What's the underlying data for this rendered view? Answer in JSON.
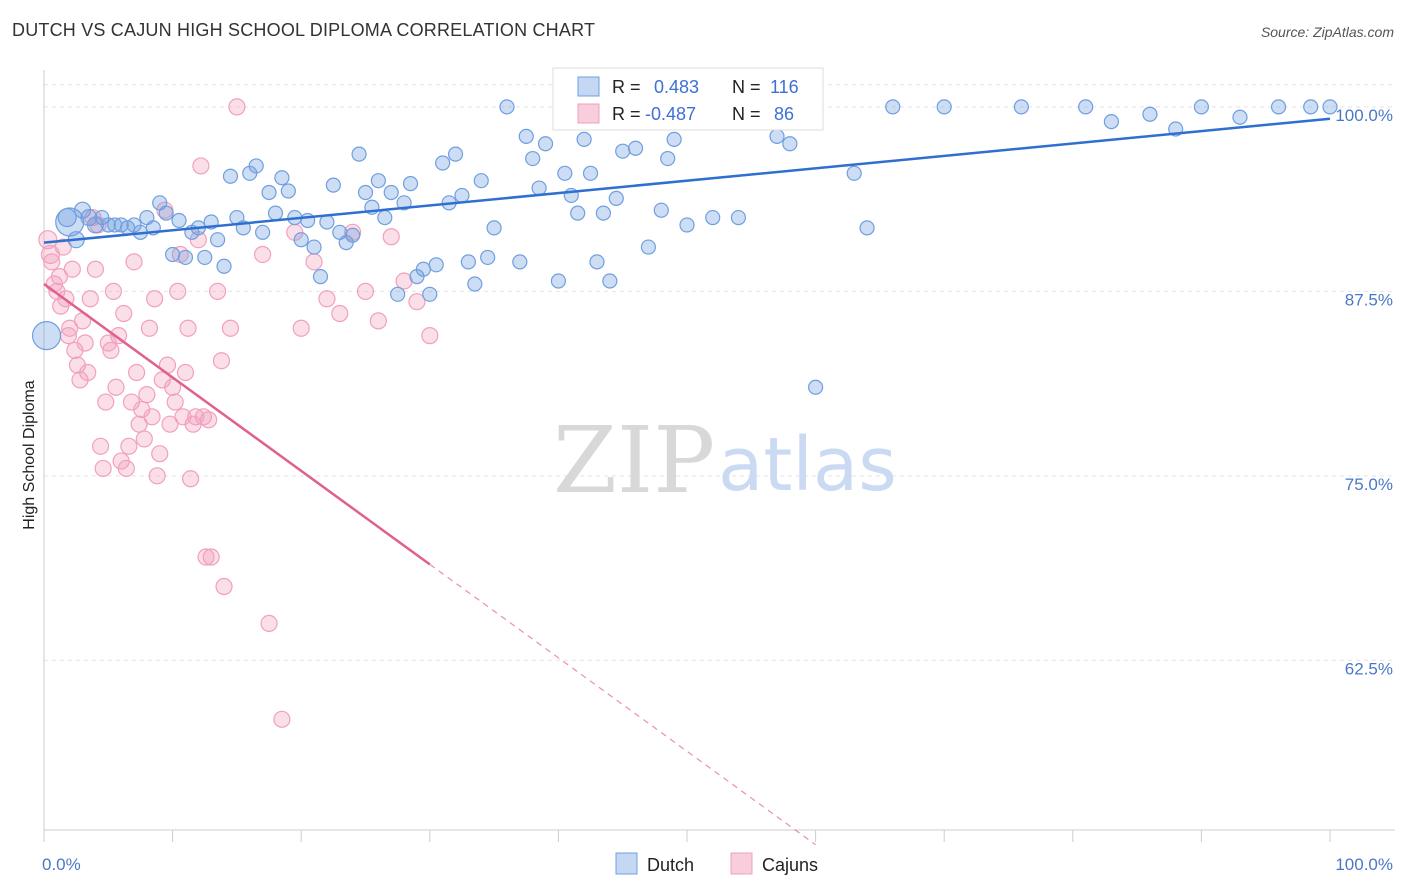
{
  "title": "DUTCH VS CAJUN HIGH SCHOOL DIPLOMA CORRELATION CHART",
  "source": "Source: ZipAtlas.com",
  "watermark": {
    "zip": "ZIP",
    "atlas": "atlas"
  },
  "legend": {
    "rows": [
      {
        "r_label": "R =",
        "r_value": "0.483",
        "n_label": "N =",
        "n_value": "116"
      },
      {
        "r_label": "R =",
        "r_value": "-0.487",
        "n_label": "N =",
        "n_value": "86"
      }
    ]
  },
  "bottom_legend": [
    "Dutch",
    "Cajuns"
  ],
  "colors": {
    "dutch": "#6f9fe0",
    "cajuns": "#f2a0bd",
    "dutch_line": "#2f6fd0",
    "cajun_line": "#e0608f"
  },
  "chart_data": {
    "type": "scatter",
    "title": "DUTCH VS CAJUN HIGH SCHOOL DIPLOMA CORRELATION CHART",
    "xlabel": "",
    "ylabel": "High School Diploma",
    "xlim": [
      0,
      100
    ],
    "ylim": [
      51,
      102.5
    ],
    "x_tick_labels": [
      "0.0%",
      "100.0%"
    ],
    "y_ticks": [
      62.5,
      75.0,
      87.5,
      100.0
    ],
    "y_tick_labels": [
      "62.5%",
      "75.0%",
      "87.5%",
      "100.0%"
    ],
    "grid": true,
    "legend_placement": "top-center",
    "series": [
      {
        "name": "Dutch",
        "r": 0.483,
        "n": 116,
        "trend": {
          "x": [
            0,
            100
          ],
          "y": [
            90.8,
            99.2
          ]
        },
        "points": [
          [
            0.2,
            84.5,
            14
          ],
          [
            1.8,
            92.5,
            9
          ],
          [
            2.0,
            92.2,
            14
          ],
          [
            2.5,
            91.0,
            8
          ],
          [
            3.0,
            93.0,
            8
          ],
          [
            3.5,
            92.5,
            8
          ],
          [
            4.0,
            92.0,
            8
          ],
          [
            4.5,
            92.5,
            7
          ],
          [
            5.0,
            92.0,
            7
          ],
          [
            5.5,
            92.0,
            7
          ],
          [
            6.0,
            92.0,
            7
          ],
          [
            6.5,
            91.8,
            7
          ],
          [
            7.0,
            92.0,
            7
          ],
          [
            7.5,
            91.5,
            7
          ],
          [
            8.0,
            92.5,
            7
          ],
          [
            8.5,
            91.8,
            7
          ],
          [
            9.0,
            93.5,
            7
          ],
          [
            9.5,
            92.8,
            7
          ],
          [
            10.0,
            90.0,
            7
          ],
          [
            10.5,
            92.3,
            7
          ],
          [
            11.0,
            89.8,
            7
          ],
          [
            11.5,
            91.5,
            7
          ],
          [
            12.0,
            91.8,
            7
          ],
          [
            12.5,
            89.8,
            7
          ],
          [
            13.0,
            92.2,
            7
          ],
          [
            13.5,
            91.0,
            7
          ],
          [
            14.0,
            89.2,
            7
          ],
          [
            14.5,
            95.3,
            7
          ],
          [
            15.0,
            92.5,
            7
          ],
          [
            15.5,
            91.8,
            7
          ],
          [
            16.0,
            95.5,
            7
          ],
          [
            16.5,
            96.0,
            7
          ],
          [
            17.0,
            91.5,
            7
          ],
          [
            17.5,
            94.2,
            7
          ],
          [
            18.0,
            92.8,
            7
          ],
          [
            18.5,
            95.2,
            7
          ],
          [
            19.0,
            94.3,
            7
          ],
          [
            19.5,
            92.5,
            7
          ],
          [
            20.0,
            91.0,
            7
          ],
          [
            20.5,
            92.3,
            7
          ],
          [
            21.0,
            90.5,
            7
          ],
          [
            21.5,
            88.5,
            7
          ],
          [
            22.0,
            92.2,
            7
          ],
          [
            22.5,
            94.7,
            7
          ],
          [
            23.0,
            91.5,
            7
          ],
          [
            23.5,
            90.8,
            7
          ],
          [
            24.0,
            91.3,
            7
          ],
          [
            24.5,
            96.8,
            7
          ],
          [
            25.0,
            94.2,
            7
          ],
          [
            25.5,
            93.2,
            7
          ],
          [
            26.0,
            95.0,
            7
          ],
          [
            26.5,
            92.5,
            7
          ],
          [
            27.0,
            94.2,
            7
          ],
          [
            27.5,
            87.3,
            7
          ],
          [
            28.0,
            93.5,
            7
          ],
          [
            28.5,
            94.8,
            7
          ],
          [
            29.0,
            88.5,
            7
          ],
          [
            29.5,
            89.0,
            7
          ],
          [
            30.0,
            87.3,
            7
          ],
          [
            30.5,
            89.3,
            7
          ],
          [
            31.0,
            96.2,
            7
          ],
          [
            31.5,
            93.5,
            7
          ],
          [
            32.0,
            96.8,
            7
          ],
          [
            32.5,
            94.0,
            7
          ],
          [
            33.0,
            89.5,
            7
          ],
          [
            33.5,
            88.0,
            7
          ],
          [
            34.0,
            95.0,
            7
          ],
          [
            34.5,
            89.8,
            7
          ],
          [
            35.0,
            91.8,
            7
          ],
          [
            36.0,
            100.0,
            7
          ],
          [
            37.0,
            89.5,
            7
          ],
          [
            37.5,
            98.0,
            7
          ],
          [
            38.0,
            96.5,
            7
          ],
          [
            38.5,
            94.5,
            7
          ],
          [
            39.0,
            97.5,
            7
          ],
          [
            40.0,
            88.2,
            7
          ],
          [
            40.5,
            95.5,
            7
          ],
          [
            41.0,
            94.0,
            7
          ],
          [
            41.5,
            92.8,
            7
          ],
          [
            42.0,
            97.8,
            7
          ],
          [
            42.5,
            95.5,
            7
          ],
          [
            43.0,
            89.5,
            7
          ],
          [
            43.5,
            92.8,
            7
          ],
          [
            44.0,
            88.2,
            7
          ],
          [
            44.5,
            93.8,
            7
          ],
          [
            45.0,
            97.0,
            7
          ],
          [
            46.0,
            97.2,
            7
          ],
          [
            47.0,
            90.5,
            7
          ],
          [
            47.5,
            99.0,
            7
          ],
          [
            48.0,
            93.0,
            7
          ],
          [
            48.5,
            96.5,
            7
          ],
          [
            49.0,
            97.8,
            7
          ],
          [
            50.0,
            92.0,
            7
          ],
          [
            51.0,
            100.0,
            7
          ],
          [
            52.0,
            92.5,
            7
          ],
          [
            54.0,
            92.5,
            7
          ],
          [
            56.0,
            100.0,
            7
          ],
          [
            57.0,
            98.0,
            7
          ],
          [
            58.0,
            97.5,
            7
          ],
          [
            59.0,
            100.0,
            7
          ],
          [
            60.0,
            81.0,
            7
          ],
          [
            63.0,
            95.5,
            7
          ],
          [
            64.0,
            91.8,
            7
          ],
          [
            66.0,
            100.0,
            7
          ],
          [
            70.0,
            100.0,
            7
          ],
          [
            76.0,
            100.0,
            7
          ],
          [
            81.0,
            100.0,
            7
          ],
          [
            83.0,
            99.0,
            7
          ],
          [
            86.0,
            99.5,
            7
          ],
          [
            88.0,
            98.5,
            7
          ],
          [
            90.0,
            100.0,
            7
          ],
          [
            93.0,
            99.3,
            7
          ],
          [
            96.0,
            100.0,
            7
          ],
          [
            98.5,
            100.0,
            7
          ],
          [
            100.0,
            100.0,
            7
          ]
        ]
      },
      {
        "name": "Cajuns",
        "r": -0.487,
        "n": 86,
        "trend": {
          "x": [
            0,
            30
          ],
          "y": [
            88.0,
            69.0
          ]
        },
        "trend_dashed": {
          "x": [
            30,
            60
          ],
          "y": [
            69.0,
            50.0
          ]
        },
        "points": [
          [
            0.3,
            91.0,
            9
          ],
          [
            0.5,
            90.0,
            9
          ],
          [
            0.6,
            89.5,
            8
          ],
          [
            0.8,
            88.0,
            8
          ],
          [
            1.0,
            87.5,
            8
          ],
          [
            1.2,
            88.5,
            8
          ],
          [
            1.3,
            86.5,
            8
          ],
          [
            1.5,
            90.5,
            8
          ],
          [
            1.7,
            87.0,
            8
          ],
          [
            1.9,
            84.5,
            8
          ],
          [
            2.0,
            85.0,
            8
          ],
          [
            2.2,
            89.0,
            8
          ],
          [
            2.4,
            83.5,
            8
          ],
          [
            2.6,
            82.5,
            8
          ],
          [
            2.8,
            81.5,
            8
          ],
          [
            3.0,
            85.5,
            8
          ],
          [
            3.2,
            84.0,
            8
          ],
          [
            3.4,
            82.0,
            8
          ],
          [
            3.6,
            87.0,
            8
          ],
          [
            3.8,
            92.5,
            8
          ],
          [
            4.0,
            89.0,
            8
          ],
          [
            4.2,
            92.0,
            8
          ],
          [
            4.4,
            77.0,
            8
          ],
          [
            4.6,
            75.5,
            8
          ],
          [
            4.8,
            80.0,
            8
          ],
          [
            5.0,
            84.0,
            8
          ],
          [
            5.2,
            83.5,
            8
          ],
          [
            5.4,
            87.5,
            8
          ],
          [
            5.6,
            81.0,
            8
          ],
          [
            5.8,
            84.5,
            8
          ],
          [
            6.0,
            76.0,
            8
          ],
          [
            6.2,
            86.0,
            8
          ],
          [
            6.4,
            75.5,
            8
          ],
          [
            6.6,
            77.0,
            8
          ],
          [
            6.8,
            80.0,
            8
          ],
          [
            7.0,
            89.5,
            8
          ],
          [
            7.2,
            82.0,
            8
          ],
          [
            7.4,
            78.5,
            8
          ],
          [
            7.6,
            79.5,
            8
          ],
          [
            7.8,
            77.5,
            8
          ],
          [
            8.0,
            80.5,
            8
          ],
          [
            8.2,
            85.0,
            8
          ],
          [
            8.4,
            79.0,
            8
          ],
          [
            8.6,
            87.0,
            8
          ],
          [
            8.8,
            75.0,
            8
          ],
          [
            9.0,
            76.5,
            8
          ],
          [
            9.2,
            81.5,
            8
          ],
          [
            9.4,
            93.0,
            8
          ],
          [
            9.6,
            82.5,
            8
          ],
          [
            9.8,
            78.5,
            8
          ],
          [
            10.0,
            81.0,
            8
          ],
          [
            10.2,
            80.0,
            8
          ],
          [
            10.4,
            87.5,
            8
          ],
          [
            10.6,
            90.0,
            8
          ],
          [
            10.8,
            79.0,
            8
          ],
          [
            11.0,
            82.0,
            8
          ],
          [
            11.2,
            85.0,
            8
          ],
          [
            11.4,
            74.8,
            8
          ],
          [
            11.6,
            78.5,
            8
          ],
          [
            11.8,
            79.0,
            8
          ],
          [
            12.0,
            91.0,
            8
          ],
          [
            12.2,
            96.0,
            8
          ],
          [
            12.4,
            79.0,
            8
          ],
          [
            12.6,
            69.5,
            8
          ],
          [
            12.8,
            78.8,
            8
          ],
          [
            13.0,
            69.5,
            8
          ],
          [
            13.5,
            87.5,
            8
          ],
          [
            13.8,
            82.8,
            8
          ],
          [
            14.0,
            67.5,
            8
          ],
          [
            14.5,
            85.0,
            8
          ],
          [
            15.0,
            100.0,
            8
          ],
          [
            17.0,
            90.0,
            8
          ],
          [
            17.5,
            65.0,
            8
          ],
          [
            18.5,
            58.5,
            8
          ],
          [
            19.5,
            91.5,
            8
          ],
          [
            20.0,
            85.0,
            8
          ],
          [
            21.0,
            89.5,
            8
          ],
          [
            22.0,
            87.0,
            8
          ],
          [
            23.0,
            86.0,
            8
          ],
          [
            24.0,
            91.5,
            8
          ],
          [
            25.0,
            87.5,
            8
          ],
          [
            26.0,
            85.5,
            8
          ],
          [
            27.0,
            91.2,
            8
          ],
          [
            28.0,
            88.2,
            8
          ],
          [
            29.0,
            86.8,
            8
          ],
          [
            30.0,
            84.5,
            8
          ]
        ]
      }
    ]
  }
}
